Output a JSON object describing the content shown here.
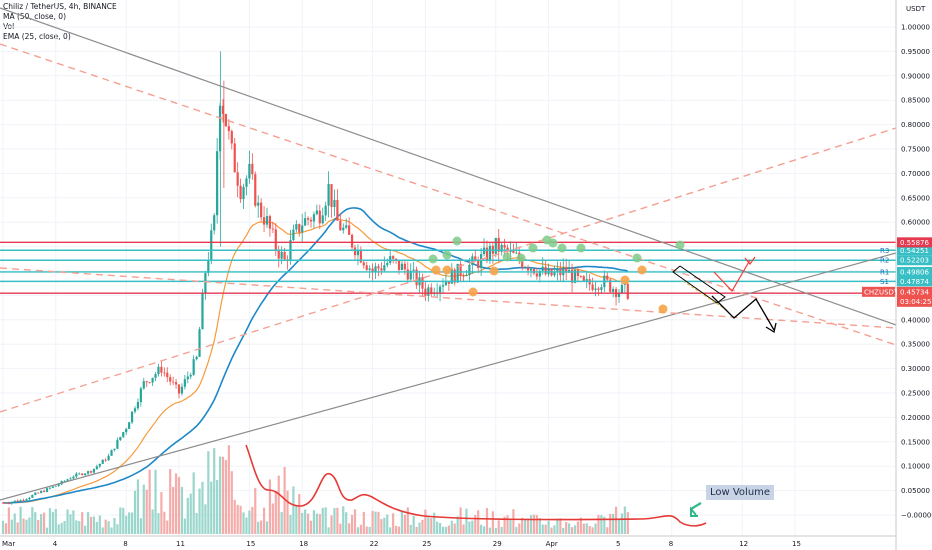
{
  "legend": {
    "symbol": "Chiliz / TetherUS, 4h, BINANCE",
    "ma": "MA (50, close, 0)",
    "vol": "Vol",
    "ema": "EMA (25, close, 0)"
  },
  "axis": {
    "currency": "USDT"
  },
  "annotation": {
    "low_volume": "Low Volume"
  },
  "colors": {
    "up": "#26a69a",
    "down": "#ef5350",
    "ma": "#1e88c8",
    "ema": "#f79a3a",
    "trend": "#8c8c8c",
    "dashed": "#f4a092",
    "level_red": "#e53950",
    "level_teal": "#37bfc5",
    "arrow_red": "#ef3b3b",
    "arrow_black": "#000000",
    "green_marker": "#7ecb8a",
    "orange_marker": "#f6a347",
    "volume_curve": "#e53935"
  },
  "chart_data": {
    "type": "candlestick",
    "symbol": "CHZUSDT",
    "interval": "4h",
    "ylim": [
      -0.03,
      1.05
    ],
    "y_ticks": [
      1.0,
      0.95,
      0.9,
      0.85,
      0.8,
      0.75,
      0.7,
      0.65,
      0.6,
      0.55,
      0.5,
      0.45,
      0.4,
      0.35,
      0.3,
      0.25,
      0.2,
      0.15,
      0.1,
      0.05,
      -0.0
    ],
    "y_tick_labels": [
      "1.00000",
      "0.95000",
      "0.90000",
      "0.85000",
      "0.80000",
      "0.75000",
      "0.70000",
      "0.65000",
      "0.60000",
      "0.55000",
      "0.50000",
      "0.45000",
      "0.40000",
      "0.35000",
      "0.30000",
      "0.25000",
      "0.20000",
      "0.15000",
      "0.10000",
      "0.05000",
      "−0.00000"
    ],
    "x_ticks": [
      "Mar",
      "4",
      "8",
      "11",
      "15",
      "18",
      "22",
      "25",
      "29",
      "Apr",
      "5",
      "8",
      "12",
      "15"
    ],
    "x_tick_days": [
      1,
      4,
      8,
      11,
      15,
      18,
      22,
      25,
      29,
      32,
      36,
      39,
      43,
      46
    ],
    "price_path_days": [
      1,
      2,
      3,
      4,
      5,
      6,
      7,
      8,
      9,
      10,
      11,
      12,
      12.5,
      13,
      13.3,
      13.6,
      14,
      14.5,
      15,
      15.5,
      16,
      16.5,
      17,
      17.5,
      18,
      19,
      19.5,
      20,
      21,
      22,
      23,
      24,
      25,
      26,
      27,
      28,
      29,
      30,
      31,
      32,
      33,
      34,
      35,
      36,
      36.5
    ],
    "price_path_close": [
      0.025,
      0.03,
      0.045,
      0.06,
      0.08,
      0.09,
      0.12,
      0.18,
      0.27,
      0.3,
      0.25,
      0.32,
      0.5,
      0.6,
      0.87,
      0.82,
      0.74,
      0.67,
      0.7,
      0.63,
      0.6,
      0.55,
      0.52,
      0.57,
      0.6,
      0.62,
      0.67,
      0.6,
      0.55,
      0.5,
      0.52,
      0.5,
      0.46,
      0.48,
      0.5,
      0.52,
      0.55,
      0.53,
      0.51,
      0.49,
      0.5,
      0.47,
      0.48,
      0.46,
      0.457
    ],
    "levels": [
      {
        "label": "R3",
        "value": 0.54251,
        "text": "0.54251",
        "color": "#37bfc5"
      },
      {
        "label": "R2",
        "value": 0.52203,
        "text": "0.52203",
        "color": "#37bfc5"
      },
      {
        "label": "R1",
        "value": 0.49806,
        "text": "0.49806",
        "color": "#37bfc5"
      },
      {
        "label": "S1",
        "value": 0.47874,
        "text": "0.47874",
        "color": "#37bfc5"
      },
      {
        "label": "",
        "value": 0.55876,
        "text": "0.55876",
        "color": "#e53950"
      },
      {
        "label": "",
        "value": 0.45461,
        "text": "0.45461",
        "color": "#e53950"
      }
    ],
    "last_price": {
      "label": "CHZUSDT",
      "value": 0.45734,
      "text": "0.45734",
      "countdown": "03:04:25"
    }
  }
}
